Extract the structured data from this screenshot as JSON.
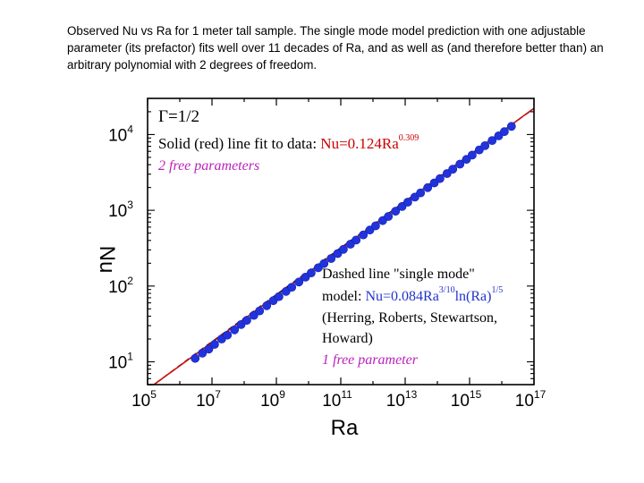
{
  "caption": "Observed Nu vs Ra for 1 meter tall sample.  The single mode model prediction with one adjustable parameter (its prefactor) fits well over 11 decades of Ra, and as well as (and therefore better than) an arbitrary polynomial with 2 degrees of freedom.",
  "colors": {
    "data_points": "#2233dd",
    "fit_line": "#cc1111",
    "dashed_line": "#111111",
    "red_text": "#cc0000",
    "magenta_text": "#bb22bb"
  },
  "chart_data": {
    "type": "scatter",
    "xlabel": "Ra",
    "ylabel": "Nu",
    "x_scale": "log",
    "y_scale": "log",
    "xlim": [
      100000,
      1e+17
    ],
    "ylim": [
      5,
      30000
    ],
    "x_ticks": [
      {
        "value": 100000.0,
        "base": "10",
        "exp": "5"
      },
      {
        "value": 10000000.0,
        "base": "10",
        "exp": "7"
      },
      {
        "value": 1000000000.0,
        "base": "10",
        "exp": "9"
      },
      {
        "value": 100000000000.0,
        "base": "10",
        "exp": "11"
      },
      {
        "value": 10000000000000.0,
        "base": "10",
        "exp": "13"
      },
      {
        "value": 1000000000000000.0,
        "base": "10",
        "exp": "15"
      },
      {
        "value": 1e+17,
        "base": "10",
        "exp": "17"
      }
    ],
    "y_ticks": [
      {
        "value": 10,
        "base": "10",
        "exp": "1"
      },
      {
        "value": 100,
        "base": "10",
        "exp": "2"
      },
      {
        "value": 1000,
        "base": "10",
        "exp": "3"
      },
      {
        "value": 10000,
        "base": "10",
        "exp": "4"
      }
    ],
    "points": [
      {
        "x": 3000000.0,
        "y": 11.1
      },
      {
        "x": 5000000.0,
        "y": 13.0
      },
      {
        "x": 8000000.0,
        "y": 14.7
      },
      {
        "x": 12000000.0,
        "y": 17.0
      },
      {
        "x": 20000000.0,
        "y": 20.0
      },
      {
        "x": 30000000.0,
        "y": 22.5
      },
      {
        "x": 50000000.0,
        "y": 26.4
      },
      {
        "x": 80000000.0,
        "y": 31.0
      },
      {
        "x": 120000000.0,
        "y": 35.2
      },
      {
        "x": 200000000.0,
        "y": 41.0
      },
      {
        "x": 300000000.0,
        "y": 47.0
      },
      {
        "x": 500000000.0,
        "y": 55.0
      },
      {
        "x": 800000000.0,
        "y": 64.0
      },
      {
        "x": 1200000000.0,
        "y": 72.5
      },
      {
        "x": 2000000000.0,
        "y": 85.0
      },
      {
        "x": 3000000000.0,
        "y": 96.5
      },
      {
        "x": 5000000000.0,
        "y": 113
      },
      {
        "x": 8000000000.0,
        "y": 131
      },
      {
        "x": 12000000000.0,
        "y": 149
      },
      {
        "x": 20000000000.0,
        "y": 174
      },
      {
        "x": 30000000000.0,
        "y": 198
      },
      {
        "x": 50000000000.0,
        "y": 231
      },
      {
        "x": 80000000000.0,
        "y": 268
      },
      {
        "x": 120000000000.0,
        "y": 305
      },
      {
        "x": 200000000000.0,
        "y": 357
      },
      {
        "x": 300000000000.0,
        "y": 405
      },
      {
        "x": 500000000000.0,
        "y": 474
      },
      {
        "x": 800000000000.0,
        "y": 548
      },
      {
        "x": 1200000000000.0,
        "y": 624
      },
      {
        "x": 2000000000000.0,
        "y": 730
      },
      {
        "x": 3000000000000.0,
        "y": 830
      },
      {
        "x": 5000000000000.0,
        "y": 970
      },
      {
        "x": 8000000000000.0,
        "y": 1120
      },
      {
        "x": 12000000000000.0,
        "y": 1280
      },
      {
        "x": 20000000000000.0,
        "y": 1490
      },
      {
        "x": 30000000000000.0,
        "y": 1700
      },
      {
        "x": 50000000000000.0,
        "y": 1990
      },
      {
        "x": 80000000000000.0,
        "y": 2300
      },
      {
        "x": 120000000000000.0,
        "y": 2620
      },
      {
        "x": 200000000000000.0,
        "y": 3060
      },
      {
        "x": 300000000000000.0,
        "y": 3480
      },
      {
        "x": 500000000000000.0,
        "y": 4070
      },
      {
        "x": 800000000000000.0,
        "y": 4700
      },
      {
        "x": 1200000000000000.0,
        "y": 5350
      },
      {
        "x": 2000000000000000.0,
        "y": 6260
      },
      {
        "x": 3000000000000000.0,
        "y": 7120
      },
      {
        "x": 5000000000000000.0,
        "y": 8330
      },
      {
        "x": 8000000000000000.0,
        "y": 9610
      },
      {
        "x": 1.2e+16,
        "y": 10900
      },
      {
        "x": 2e+16,
        "y": 12800
      }
    ],
    "fit_line": {
      "prefactor": 0.124,
      "exponent": 0.309
    },
    "dashed_line": {
      "prefactor": 0.084,
      "ra_exponent": 0.3,
      "ln_exponent": 0.2
    },
    "annotations": {
      "gamma": "Γ=1/2",
      "solid_prefix": "Solid (red) line fit to data: ",
      "solid_eq": "Nu=0.124Ra",
      "solid_eq_exp": "0.309",
      "solid_params": "2 free parameters",
      "dashed_line1": "Dashed line \"single mode\"",
      "dashed_model_prefix": "model: ",
      "dashed_eq_a": "Nu=0.084Ra",
      "dashed_eq_a_exp": "3/10",
      "dashed_eq_b": "ln(Ra)",
      "dashed_eq_b_exp": "1/5",
      "dashed_ref1": "(Herring, Roberts, Stewartson,",
      "dashed_ref2": "Howard)",
      "dashed_params": "1 free parameter"
    }
  }
}
